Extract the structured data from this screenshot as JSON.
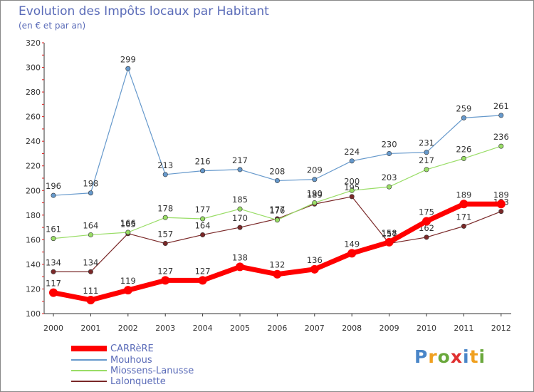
{
  "chart_data": {
    "type": "line",
    "title": "Evolution des Impôts locaux par Habitant",
    "subtitle": "(en € et par an)",
    "xlabel": "",
    "ylabel": "",
    "x": [
      "2000",
      "2001",
      "2002",
      "2003",
      "2004",
      "2005",
      "2006",
      "2007",
      "2008",
      "2009",
      "2010",
      "2011",
      "2012"
    ],
    "ylim": [
      100,
      320
    ],
    "yticks": [
      100,
      120,
      140,
      160,
      180,
      200,
      220,
      240,
      260,
      280,
      300,
      320
    ],
    "grid": false,
    "legend_position": "bottom-left",
    "series": [
      {
        "name": "CARRèRE",
        "color": "#ff0000",
        "values": [
          117,
          111,
          119,
          127,
          127,
          138,
          132,
          136,
          149,
          158,
          175,
          189,
          189
        ]
      },
      {
        "name": "Mouhous",
        "color": "#6699cc",
        "values": [
          196,
          198,
          299,
          213,
          216,
          217,
          208,
          209,
          224,
          230,
          231,
          259,
          261
        ]
      },
      {
        "name": "Miossens-Lanusse",
        "color": "#99dd66",
        "values": [
          161,
          164,
          166,
          178,
          177,
          185,
          176,
          190,
          200,
          203,
          217,
          226,
          236
        ]
      },
      {
        "name": "Lalonquette",
        "color": "#7a2828",
        "values": [
          134,
          134,
          165,
          157,
          164,
          170,
          177,
          189,
          195,
          157,
          162,
          171,
          183
        ]
      }
    ]
  },
  "logo": {
    "letters": [
      "P",
      "r",
      "o",
      "x",
      "i",
      "t",
      "i"
    ]
  }
}
